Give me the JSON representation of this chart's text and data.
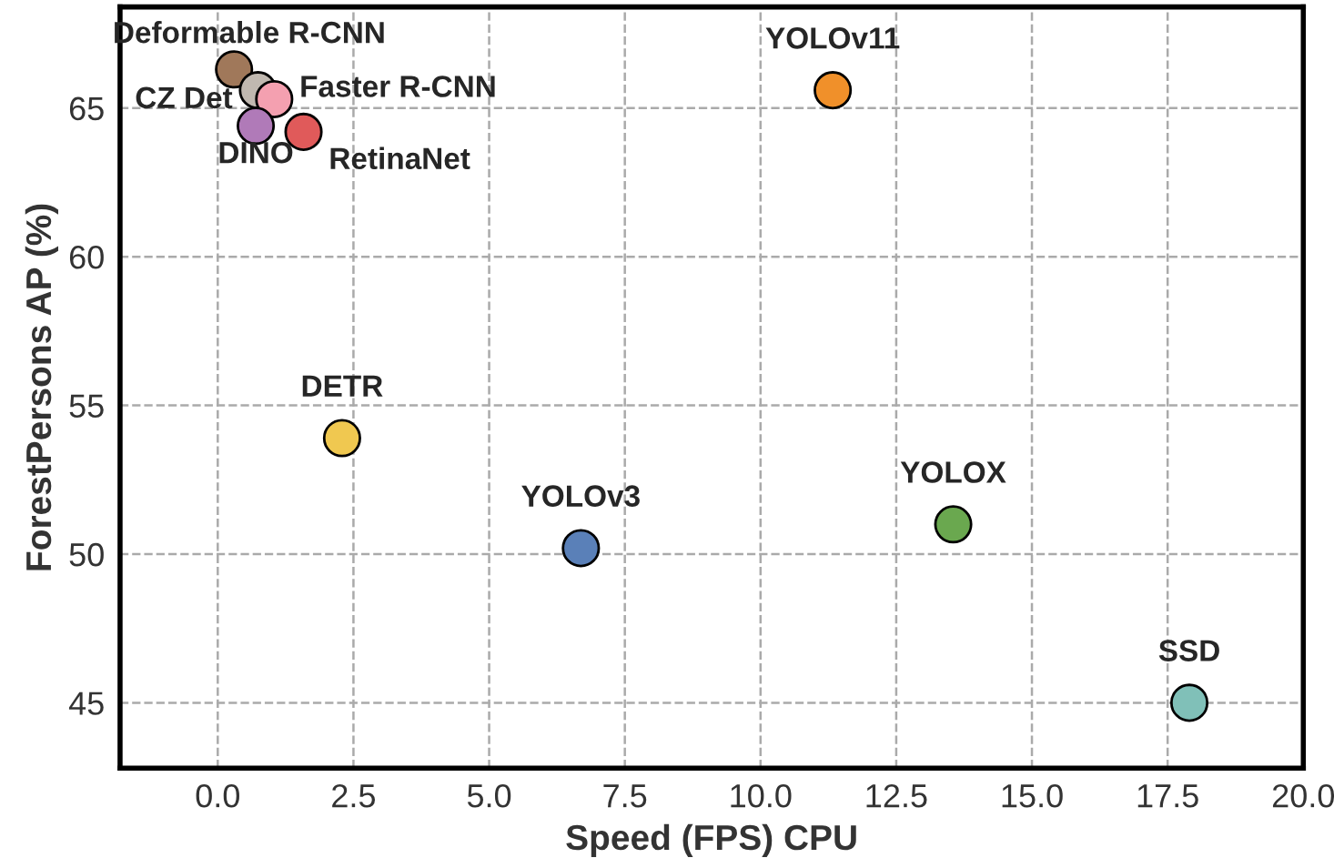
{
  "chart_data": {
    "type": "scatter",
    "xlabel": "Speed (FPS) CPU",
    "ylabel": "ForestPersons AP (%)",
    "xlim": [
      -1.8,
      20
    ],
    "ylim": [
      42.8,
      68.4
    ],
    "xticks": [
      {
        "value": 0,
        "label": "0.0"
      },
      {
        "value": 2.5,
        "label": "2.5"
      },
      {
        "value": 5,
        "label": "5.0"
      },
      {
        "value": 7.5,
        "label": "7.5"
      },
      {
        "value": 10,
        "label": "10.0"
      },
      {
        "value": 12.5,
        "label": "12.5"
      },
      {
        "value": 15,
        "label": "15.0"
      },
      {
        "value": 17.5,
        "label": "17.5"
      },
      {
        "value": 20,
        "label": "20.0"
      }
    ],
    "yticks": [
      45,
      50,
      55,
      60,
      65
    ],
    "grid": true,
    "legend": false,
    "marker": "circle",
    "series": [
      {
        "name": "Deformable R-CNN",
        "color": "#a0785a",
        "x": [
          0.3
        ],
        "values": [
          66.3
        ]
      },
      {
        "name": "CZ Det",
        "color": "#c0b8b0",
        "x": [
          0.74
        ],
        "values": [
          65.6
        ]
      },
      {
        "name": "Faster R-CNN",
        "color": "#f4a0b0",
        "x": [
          1.04
        ],
        "values": [
          65.3
        ]
      },
      {
        "name": "DINO",
        "color": "#b07ab8",
        "x": [
          0.7
        ],
        "values": [
          64.4
        ]
      },
      {
        "name": "RetinaNet",
        "color": "#e05a5a",
        "x": [
          1.58
        ],
        "values": [
          64.2
        ]
      },
      {
        "name": "YOLOv11",
        "color": "#f0902a",
        "x": [
          11.33
        ],
        "values": [
          65.6
        ]
      },
      {
        "name": "DETR",
        "color": "#f0c850",
        "x": [
          2.29
        ],
        "values": [
          53.9
        ]
      },
      {
        "name": "YOLOv3",
        "color": "#5a80b8",
        "x": [
          6.69
        ],
        "values": [
          50.2
        ]
      },
      {
        "name": "YOLOX",
        "color": "#6aa84f",
        "x": [
          13.55
        ],
        "values": [
          51.0
        ]
      },
      {
        "name": "SSD",
        "color": "#80c0b8",
        "x": [
          17.9
        ],
        "values": [
          45.0
        ]
      }
    ]
  }
}
